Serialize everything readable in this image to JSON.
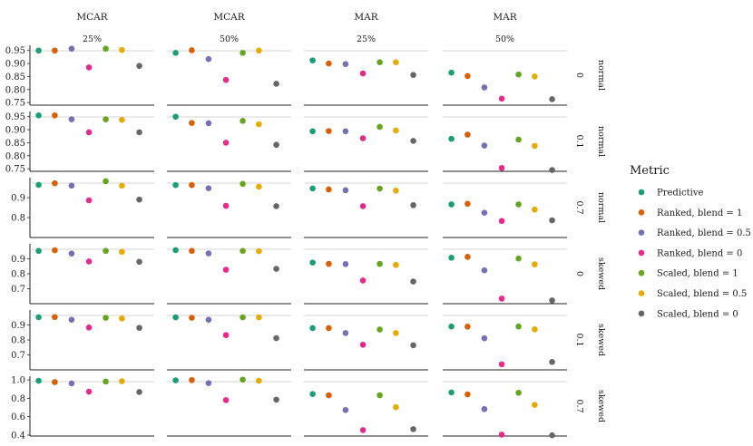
{
  "chart_data": {
    "type": "scatter",
    "facet_cols": [
      {
        "top": "MCAR",
        "sub": "25%"
      },
      {
        "top": "MCAR",
        "sub": "50%"
      },
      {
        "top": "MAR",
        "sub": "25%"
      },
      {
        "top": "MAR",
        "sub": "50%"
      }
    ],
    "facet_rows": [
      {
        "value": "0",
        "dist": "normal",
        "ylim": [
          0.74,
          0.97
        ],
        "ticks": [
          "0.95",
          "0.90",
          "0.85",
          "0.80",
          "0.75"
        ]
      },
      {
        "value": "0.1",
        "dist": "normal",
        "ylim": [
          0.74,
          0.97
        ],
        "ticks": [
          "0.95",
          "0.90",
          "0.85",
          "0.80",
          "0.75"
        ]
      },
      {
        "value": "0.7",
        "dist": "normal",
        "ylim": [
          0.7,
          1.0
        ],
        "ticks": [
          "0.9",
          "0.8"
        ]
      },
      {
        "value": "0",
        "dist": "skewed",
        "ylim": [
          0.6,
          1.0
        ],
        "ticks": [
          "0.9",
          "0.8",
          "0.7"
        ]
      },
      {
        "value": "0.1",
        "dist": "skewed",
        "ylim": [
          0.6,
          1.0
        ],
        "ticks": [
          "0.9",
          "0.8",
          "0.7"
        ]
      },
      {
        "value": "0.7",
        "dist": "skewed",
        "ylim": [
          0.39,
          1.04
        ],
        "ticks": [
          "1.0",
          "0.8",
          "0.6",
          "0.4"
        ]
      }
    ],
    "legend": {
      "title": "Metric",
      "placement": "right",
      "entries": [
        {
          "name": "Predictive",
          "color": "#1b9e77"
        },
        {
          "name": "Ranked, blend = 1",
          "color": "#d95f02"
        },
        {
          "name": "Ranked, blend = 0.5",
          "color": "#7570b3"
        },
        {
          "name": "Ranked, blend = 0",
          "color": "#e7298a"
        },
        {
          "name": "Scaled, blend = 1",
          "color": "#66a61e"
        },
        {
          "name": "Scaled, blend = 0.5",
          "color": "#e6ab02"
        },
        {
          "name": "Scaled, blend = 0",
          "color": "#666666"
        }
      ]
    },
    "values": [
      [
        [
          0.95,
          0.95,
          0.957,
          0.885,
          0.957,
          0.952,
          0.891
        ],
        [
          0.941,
          0.951,
          0.917,
          0.837,
          0.941,
          0.95,
          0.822
        ],
        [
          0.912,
          0.9,
          0.898,
          0.862,
          0.905,
          0.905,
          0.856
        ],
        [
          0.865,
          0.852,
          0.808,
          0.765,
          0.858,
          0.85,
          0.763
        ]
      ],
      [
        [
          0.955,
          0.955,
          0.94,
          0.89,
          0.94,
          0.938,
          0.89
        ],
        [
          0.95,
          0.926,
          0.925,
          0.85,
          0.934,
          0.921,
          0.842
        ],
        [
          0.894,
          0.895,
          0.894,
          0.867,
          0.911,
          0.897,
          0.857
        ],
        [
          0.865,
          0.881,
          0.839,
          0.753,
          0.862,
          0.838,
          0.745
        ]
      ],
      [
        [
          0.964,
          0.972,
          0.96,
          0.886,
          0.982,
          0.96,
          0.89
        ],
        [
          0.963,
          0.963,
          0.947,
          0.859,
          0.969,
          0.955,
          0.857
        ],
        [
          0.946,
          0.941,
          0.937,
          0.857,
          0.945,
          0.935,
          0.862
        ],
        [
          0.866,
          0.869,
          0.824,
          0.783,
          0.866,
          0.84,
          0.786
        ]
      ],
      [
        [
          0.953,
          0.957,
          0.935,
          0.882,
          0.953,
          0.947,
          0.88
        ],
        [
          0.958,
          0.953,
          0.936,
          0.827,
          0.953,
          0.951,
          0.833
        ],
        [
          0.875,
          0.866,
          0.865,
          0.755,
          0.866,
          0.859,
          0.748
        ],
        [
          0.907,
          0.913,
          0.823,
          0.634,
          0.902,
          0.863,
          0.622
        ]
      ],
      [
        [
          0.952,
          0.953,
          0.935,
          0.883,
          0.948,
          0.944,
          0.881
        ],
        [
          0.951,
          0.948,
          0.935,
          0.832,
          0.951,
          0.951,
          0.812
        ],
        [
          0.879,
          0.879,
          0.846,
          0.768,
          0.87,
          0.846,
          0.764
        ],
        [
          0.89,
          0.889,
          0.811,
          0.637,
          0.89,
          0.871,
          0.653
        ]
      ],
      [
        [
          0.99,
          0.975,
          0.962,
          0.872,
          0.982,
          0.985,
          0.868
        ],
        [
          0.995,
          0.998,
          0.965,
          0.78,
          1.003,
          0.99,
          0.785
        ],
        [
          0.846,
          0.833,
          0.673,
          0.455,
          0.833,
          0.703,
          0.465
        ],
        [
          0.864,
          0.843,
          0.683,
          0.405,
          0.86,
          0.728,
          0.398
        ]
      ]
    ]
  }
}
